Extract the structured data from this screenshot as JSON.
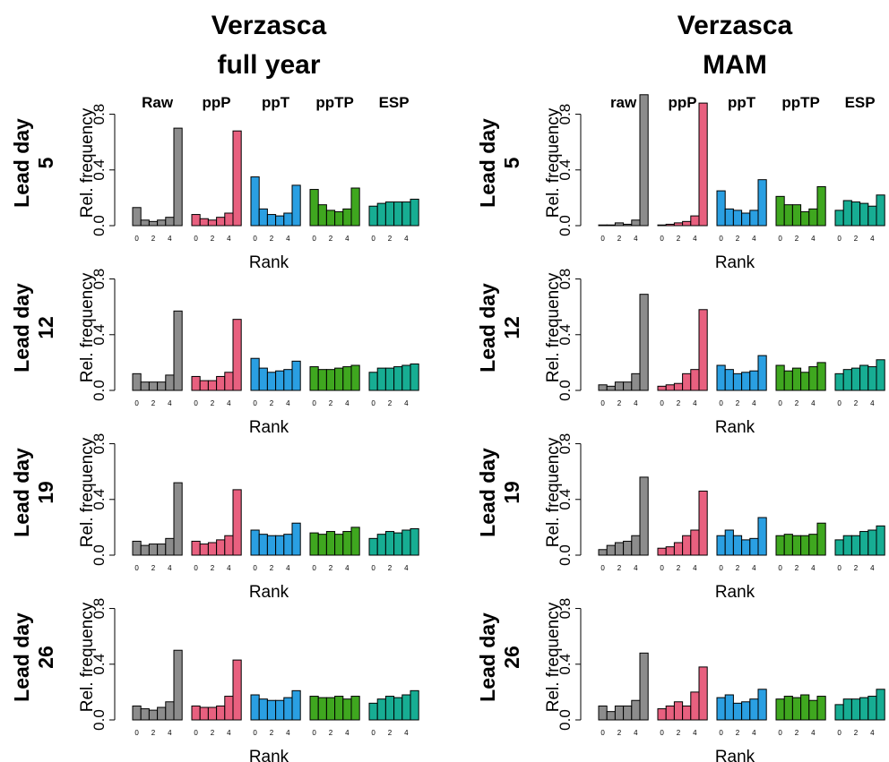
{
  "colors": {
    "Raw": "#8c8c8c",
    "ppP": "#e8607f",
    "ppT": "#2a9fe2",
    "ppTP": "#3fa71f",
    "ESP": "#17ad93"
  },
  "chart_data": [
    {
      "type": "bar",
      "title": [
        "Verzasca",
        "full year"
      ],
      "methods": [
        "Raw",
        "ppP",
        "ppT",
        "ppTP",
        "ESP"
      ],
      "ylabel": "Rel. frequency",
      "xlabel": "Rank",
      "ylim": [
        0,
        0.9
      ],
      "yticks": [
        0.0,
        0.4,
        0.8
      ],
      "ytick_labels": [
        "0.0",
        "0.4",
        "0.8"
      ],
      "xtick_labels": [
        "0",
        "2",
        "4"
      ],
      "ranks": [
        0,
        1,
        2,
        3,
        4,
        5
      ],
      "rows": [
        {
          "label": [
            "Lead day",
            "5"
          ],
          "series": [
            {
              "name": "Raw",
              "values": [
                0.13,
                0.04,
                0.03,
                0.04,
                0.06,
                0.7
              ]
            },
            {
              "name": "ppP",
              "values": [
                0.08,
                0.05,
                0.04,
                0.06,
                0.09,
                0.68
              ]
            },
            {
              "name": "ppT",
              "values": [
                0.35,
                0.12,
                0.08,
                0.07,
                0.09,
                0.29
              ]
            },
            {
              "name": "ppTP",
              "values": [
                0.26,
                0.15,
                0.11,
                0.1,
                0.12,
                0.27
              ]
            },
            {
              "name": "ESP",
              "values": [
                0.14,
                0.16,
                0.17,
                0.17,
                0.17,
                0.19
              ]
            }
          ]
        },
        {
          "label": [
            "Lead day",
            "12"
          ],
          "series": [
            {
              "name": "Raw",
              "values": [
                0.12,
                0.06,
                0.06,
                0.06,
                0.11,
                0.57
              ]
            },
            {
              "name": "ppP",
              "values": [
                0.1,
                0.07,
                0.07,
                0.1,
                0.13,
                0.51
              ]
            },
            {
              "name": "ppT",
              "values": [
                0.23,
                0.16,
                0.13,
                0.14,
                0.15,
                0.21
              ]
            },
            {
              "name": "ppTP",
              "values": [
                0.17,
                0.15,
                0.15,
                0.16,
                0.17,
                0.18
              ]
            },
            {
              "name": "ESP",
              "values": [
                0.13,
                0.16,
                0.16,
                0.17,
                0.18,
                0.19
              ]
            }
          ]
        },
        {
          "label": [
            "Lead day",
            "19"
          ],
          "series": [
            {
              "name": "Raw",
              "values": [
                0.1,
                0.07,
                0.08,
                0.08,
                0.12,
                0.52
              ]
            },
            {
              "name": "ppP",
              "values": [
                0.1,
                0.08,
                0.09,
                0.11,
                0.14,
                0.47
              ]
            },
            {
              "name": "ppT",
              "values": [
                0.18,
                0.15,
                0.14,
                0.14,
                0.15,
                0.23
              ]
            },
            {
              "name": "ppTP",
              "values": [
                0.16,
                0.15,
                0.17,
                0.15,
                0.17,
                0.2
              ]
            },
            {
              "name": "ESP",
              "values": [
                0.12,
                0.15,
                0.17,
                0.16,
                0.18,
                0.19
              ]
            }
          ]
        },
        {
          "label": [
            "Lead day",
            "26"
          ],
          "series": [
            {
              "name": "Raw",
              "values": [
                0.1,
                0.08,
                0.07,
                0.09,
                0.13,
                0.5
              ]
            },
            {
              "name": "ppP",
              "values": [
                0.1,
                0.09,
                0.09,
                0.1,
                0.17,
                0.43
              ]
            },
            {
              "name": "ppT",
              "values": [
                0.18,
                0.15,
                0.14,
                0.14,
                0.16,
                0.21
              ]
            },
            {
              "name": "ppTP",
              "values": [
                0.17,
                0.16,
                0.16,
                0.17,
                0.15,
                0.17
              ]
            },
            {
              "name": "ESP",
              "values": [
                0.12,
                0.15,
                0.17,
                0.16,
                0.18,
                0.21
              ]
            }
          ]
        }
      ]
    },
    {
      "type": "bar",
      "title": [
        "Verzasca",
        "MAM"
      ],
      "methods": [
        "raw",
        "ppP",
        "ppT",
        "ppTP",
        "ESP"
      ],
      "ylabel": "Rel. frequency",
      "xlabel": "Rank",
      "ylim": [
        0,
        0.9
      ],
      "yticks": [
        0.0,
        0.4,
        0.8
      ],
      "ytick_labels": [
        "0.0",
        "0.4",
        "0.8"
      ],
      "xtick_labels": [
        "0",
        "2",
        "4"
      ],
      "ranks": [
        0,
        1,
        2,
        3,
        4,
        5
      ],
      "rows": [
        {
          "label": [
            "Lead day",
            "5"
          ],
          "series": [
            {
              "name": "raw",
              "values": [
                0.005,
                0.005,
                0.02,
                0.01,
                0.04,
                0.94
              ]
            },
            {
              "name": "ppP",
              "values": [
                0.005,
                0.01,
                0.02,
                0.03,
                0.07,
                0.88
              ]
            },
            {
              "name": "ppT",
              "values": [
                0.25,
                0.12,
                0.11,
                0.09,
                0.11,
                0.33
              ]
            },
            {
              "name": "ppTP",
              "values": [
                0.21,
                0.15,
                0.15,
                0.1,
                0.12,
                0.28
              ]
            },
            {
              "name": "ESP",
              "values": [
                0.11,
                0.18,
                0.17,
                0.16,
                0.14,
                0.22
              ]
            }
          ]
        },
        {
          "label": [
            "Lead day",
            "12"
          ],
          "series": [
            {
              "name": "raw",
              "values": [
                0.04,
                0.03,
                0.06,
                0.06,
                0.12,
                0.69
              ]
            },
            {
              "name": "ppP",
              "values": [
                0.03,
                0.04,
                0.05,
                0.12,
                0.15,
                0.58
              ]
            },
            {
              "name": "ppT",
              "values": [
                0.18,
                0.15,
                0.12,
                0.13,
                0.14,
                0.25
              ]
            },
            {
              "name": "ppTP",
              "values": [
                0.18,
                0.14,
                0.16,
                0.13,
                0.17,
                0.2
              ]
            },
            {
              "name": "ESP",
              "values": [
                0.12,
                0.15,
                0.16,
                0.18,
                0.17,
                0.22
              ]
            }
          ]
        },
        {
          "label": [
            "Lead day",
            "19"
          ],
          "series": [
            {
              "name": "raw",
              "values": [
                0.04,
                0.07,
                0.09,
                0.1,
                0.14,
                0.56
              ]
            },
            {
              "name": "ppP",
              "values": [
                0.05,
                0.06,
                0.09,
                0.14,
                0.18,
                0.46
              ]
            },
            {
              "name": "ppT",
              "values": [
                0.14,
                0.18,
                0.14,
                0.11,
                0.12,
                0.27
              ]
            },
            {
              "name": "ppTP",
              "values": [
                0.14,
                0.15,
                0.14,
                0.14,
                0.15,
                0.23
              ]
            },
            {
              "name": "ESP",
              "values": [
                0.11,
                0.14,
                0.14,
                0.17,
                0.18,
                0.21
              ]
            }
          ]
        },
        {
          "label": [
            "Lead day",
            "26"
          ],
          "series": [
            {
              "name": "raw",
              "values": [
                0.1,
                0.06,
                0.1,
                0.1,
                0.14,
                0.48
              ]
            },
            {
              "name": "ppP",
              "values": [
                0.08,
                0.1,
                0.13,
                0.1,
                0.2,
                0.38
              ]
            },
            {
              "name": "ppT",
              "values": [
                0.16,
                0.18,
                0.12,
                0.13,
                0.15,
                0.22
              ]
            },
            {
              "name": "ppTP",
              "values": [
                0.15,
                0.17,
                0.16,
                0.18,
                0.14,
                0.17
              ]
            },
            {
              "name": "ESP",
              "values": [
                0.11,
                0.15,
                0.15,
                0.16,
                0.17,
                0.22
              ]
            }
          ]
        }
      ]
    }
  ]
}
